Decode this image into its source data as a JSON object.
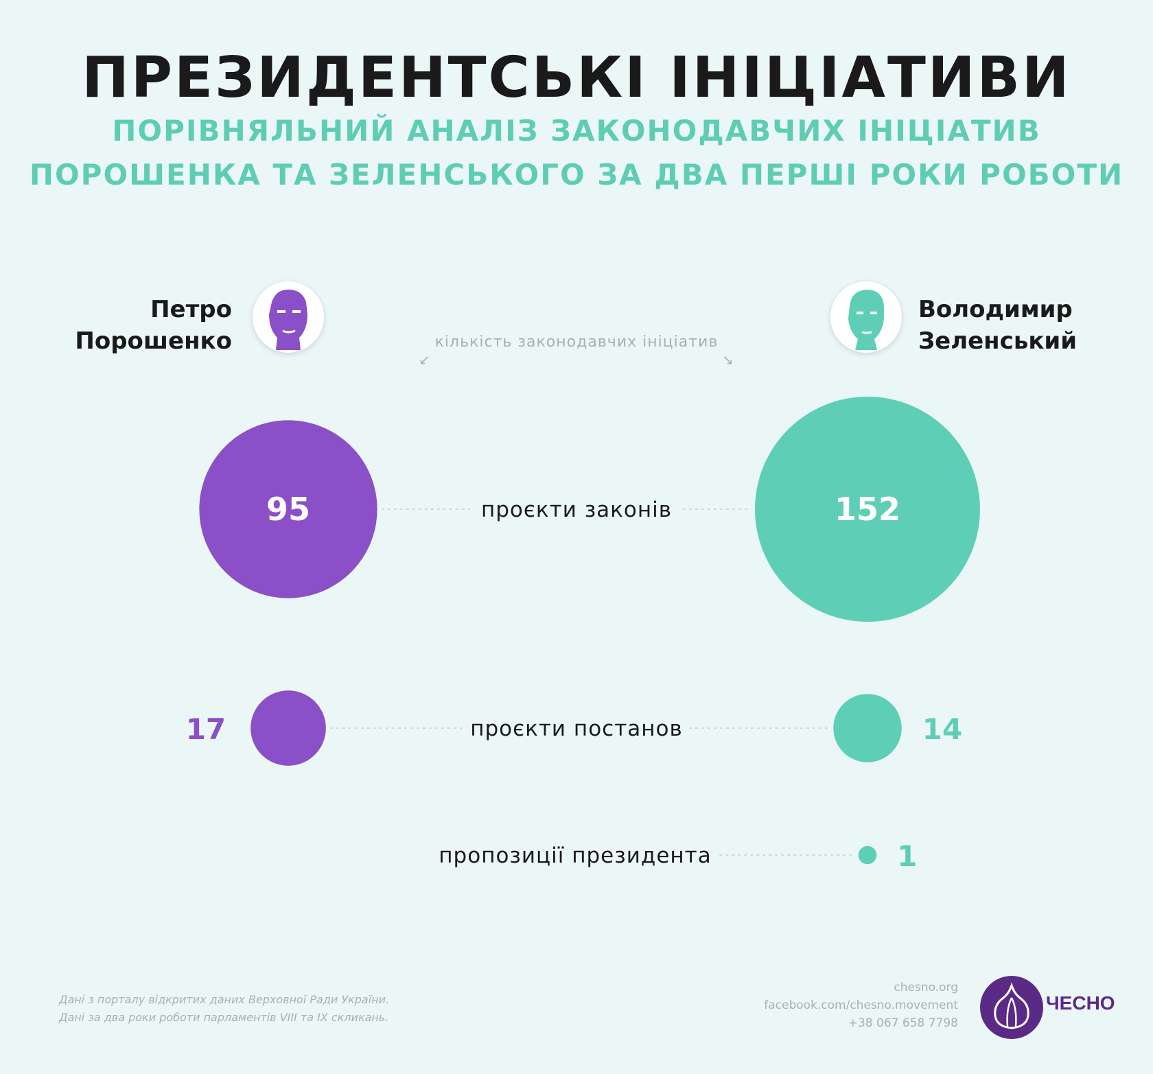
{
  "header": {
    "title": "ПРЕЗИДЕНТСЬКІ ІНІЦІАТИВИ",
    "subtitle_line1": "ПОРІВНЯЛЬНИЙ АНАЛІЗ ЗАКОНОДАВЧИХ ІНІЦІАТИВ",
    "subtitle_line2": "ПОРОШЕНКА ТА ЗЕЛЕНСЬКОГО ЗА ДВА ПЕРШІ РОКИ РОБОТИ"
  },
  "people": {
    "left": {
      "first": "Петро",
      "last": "Порошенко",
      "color": "#8b4fc8"
    },
    "right": {
      "first": "Володимир",
      "last": "Зеленський",
      "color": "#5ecfb6"
    }
  },
  "note": "кількість законодавчих ініціатив",
  "chart_data": {
    "type": "bubble-comparison",
    "categories": [
      "проєкти законів",
      "проєкти постанов",
      "пропозиції президента"
    ],
    "series": [
      {
        "name": "Петро Порошенко",
        "values": [
          95,
          17,
          null
        ],
        "color": "#8b4fc8"
      },
      {
        "name": "Володимир Зеленський",
        "values": [
          152,
          14,
          1
        ],
        "color": "#5ecfb6"
      }
    ]
  },
  "footer": {
    "source_line1": "Дані з порталу відкритих даних Верховної Ради України.",
    "source_line2": "Дані за два роки роботи парламентів VIII та IX скликань.",
    "site": "chesno.org",
    "facebook": "facebook.com/chesno.movement",
    "phone": "+38 067 658 7798",
    "logo": "ЧЕСНО"
  }
}
